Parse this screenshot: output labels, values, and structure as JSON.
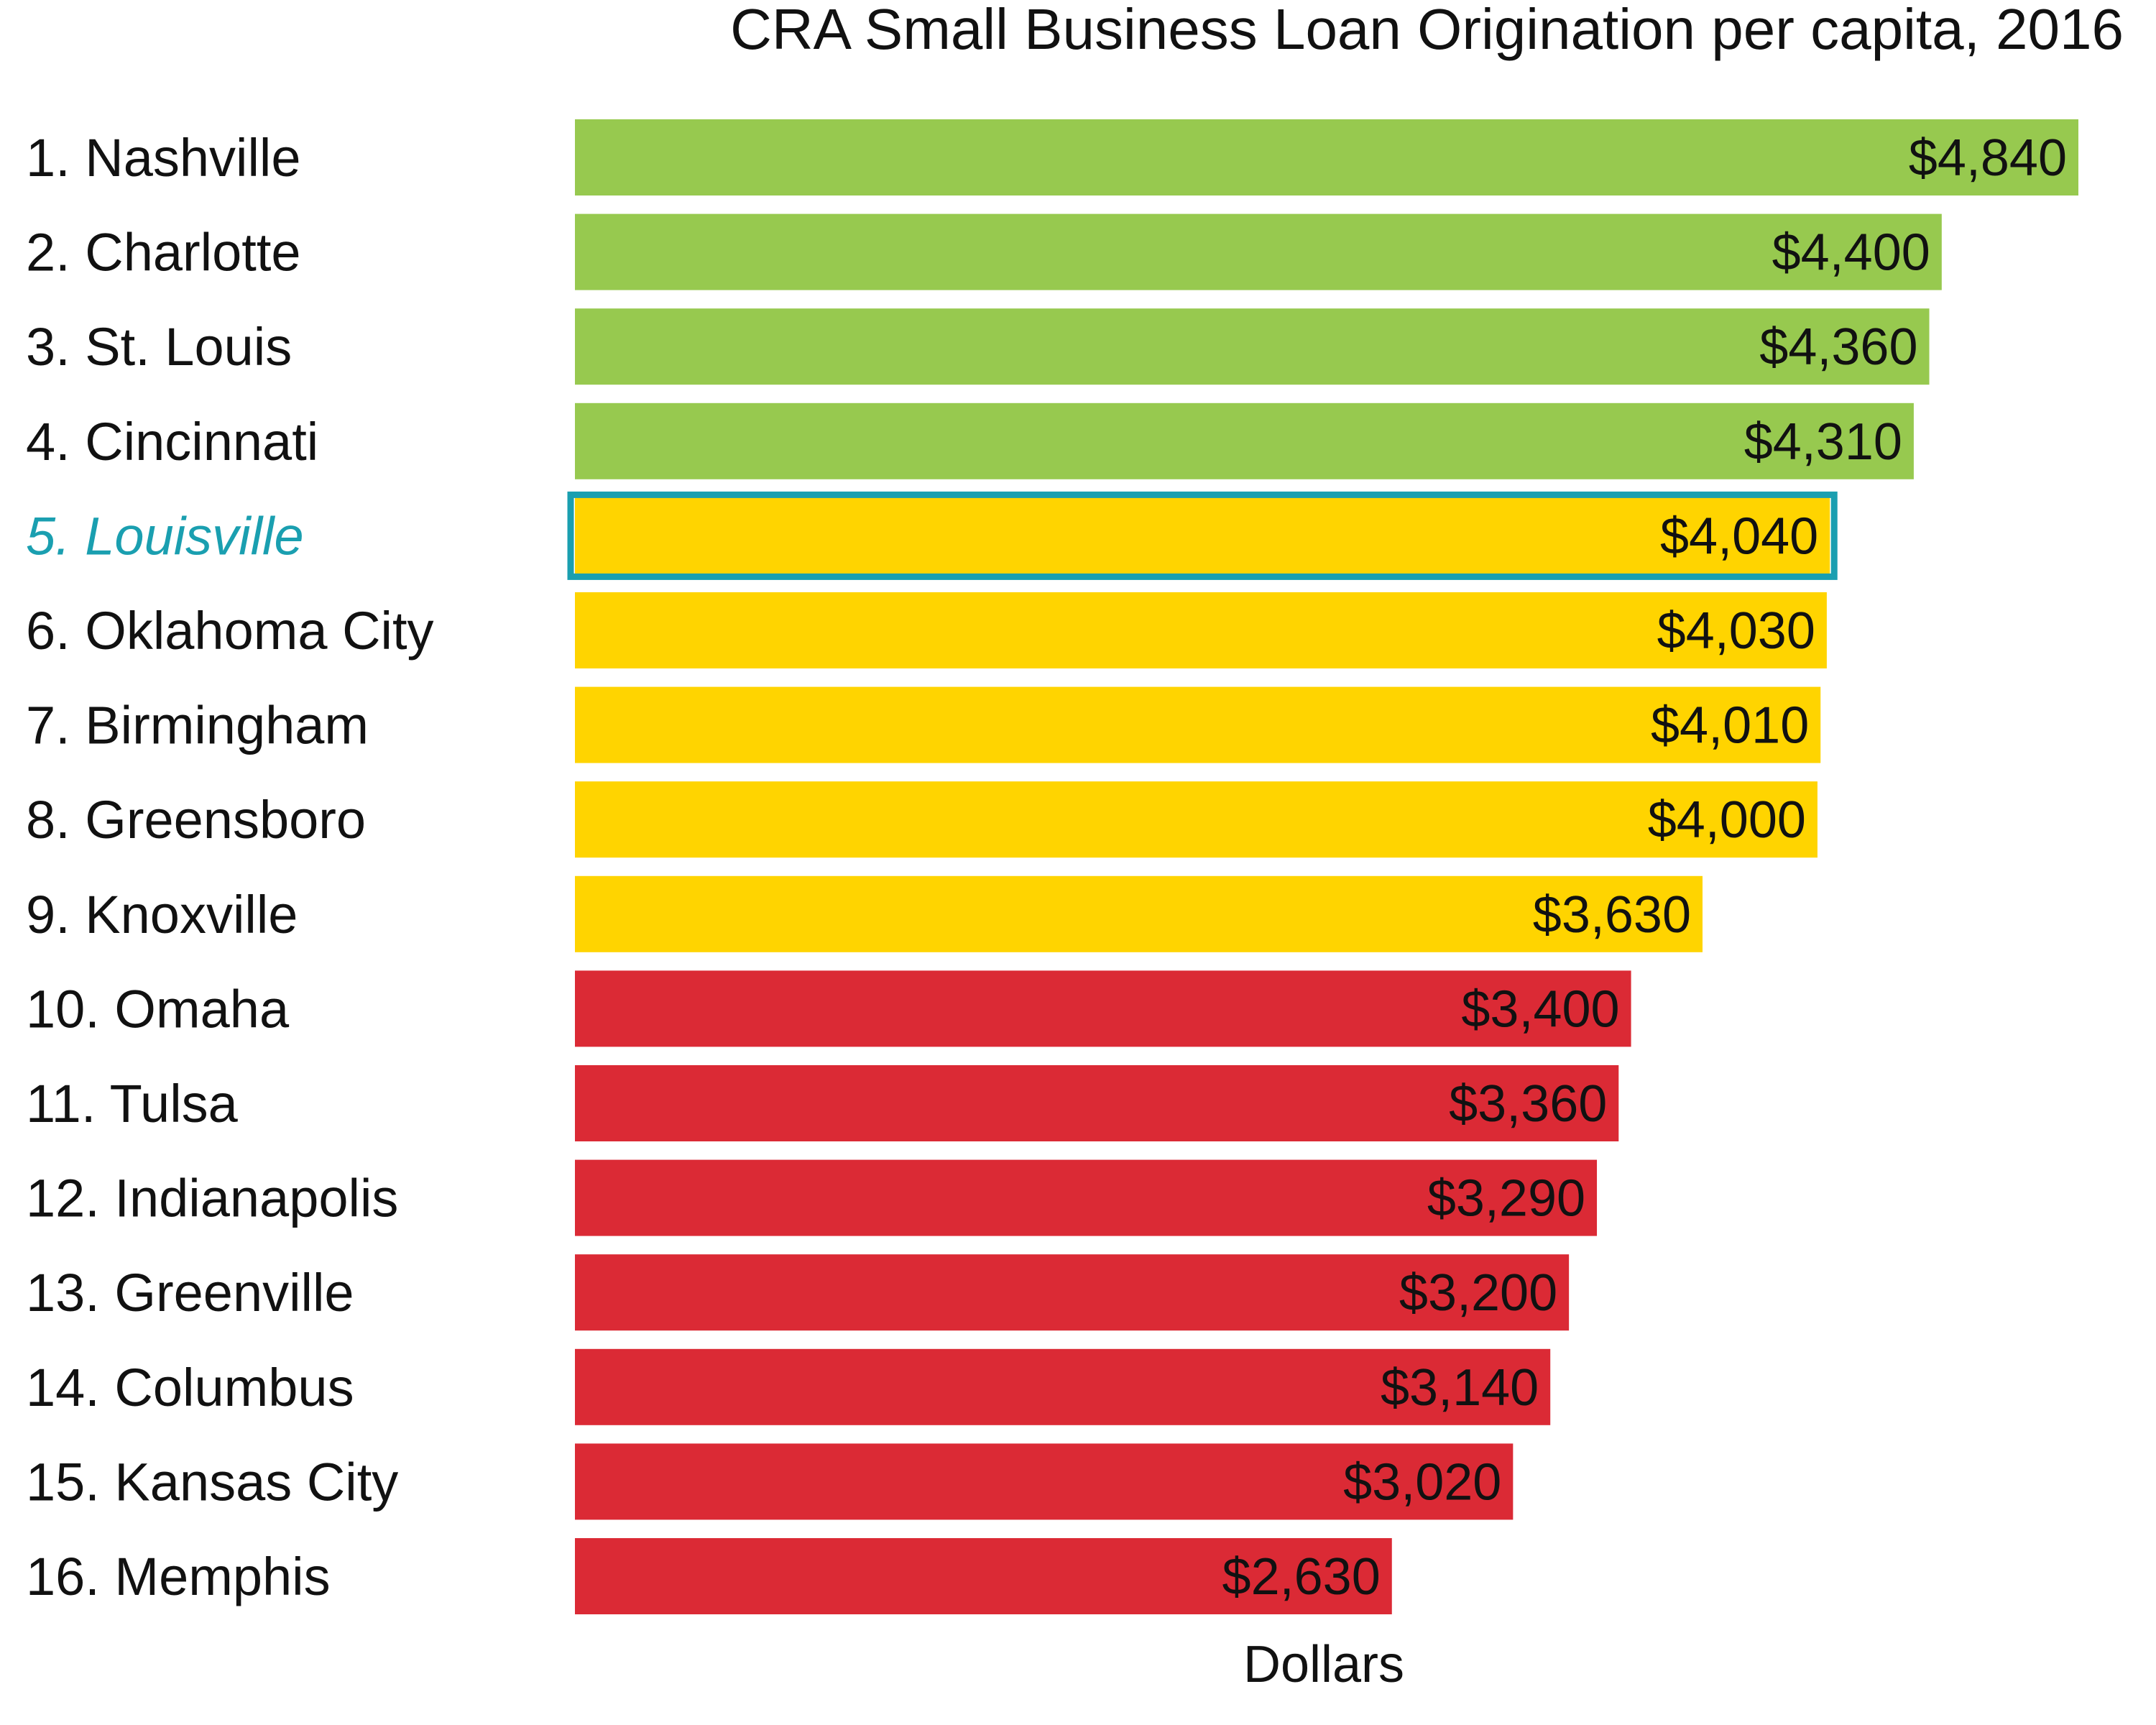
{
  "chart_data": {
    "type": "bar",
    "orientation": "horizontal",
    "title": "CRA Small Business Loan Origination per capita, 2016",
    "xlabel": "Dollars",
    "ylabel": "",
    "categories": [
      "1. Nashville",
      "2. Charlotte",
      "3. St. Louis",
      "4. Cincinnati",
      "5. Louisville",
      "6. Oklahoma City",
      "7. Birmingham",
      "8. Greensboro",
      "9. Knoxville",
      "10. Omaha",
      "11. Tulsa",
      "12. Indianapolis",
      "13. Greenville",
      "14. Columbus",
      "15. Kansas City",
      "16. Memphis"
    ],
    "values": [
      4840,
      4400,
      4360,
      4310,
      4040,
      4030,
      4010,
      4000,
      3630,
      3400,
      3360,
      3290,
      3200,
      3140,
      3020,
      2630
    ],
    "value_labels": [
      "$4,840",
      "$4,400",
      "$4,360",
      "$4,310",
      "$4,040",
      "$4,030",
      "$4,010",
      "$4,000",
      "$3,630",
      "$3,400",
      "$3,360",
      "$3,290",
      "$3,200",
      "$3,140",
      "$3,020",
      "$2,630"
    ],
    "bar_colors": [
      "#97c94f",
      "#97c94f",
      "#97c94f",
      "#97c94f",
      "#ffd400",
      "#ffd400",
      "#ffd400",
      "#ffd400",
      "#ffd400",
      "#db2a35",
      "#db2a35",
      "#db2a35",
      "#db2a35",
      "#db2a35",
      "#db2a35",
      "#db2a35"
    ],
    "highlight": {
      "index": 4,
      "outline_color": "#1a9fb0",
      "label_color": "#1a9fb0"
    },
    "xlim": [
      0,
      4840
    ],
    "grid": false,
    "legend": "none"
  }
}
